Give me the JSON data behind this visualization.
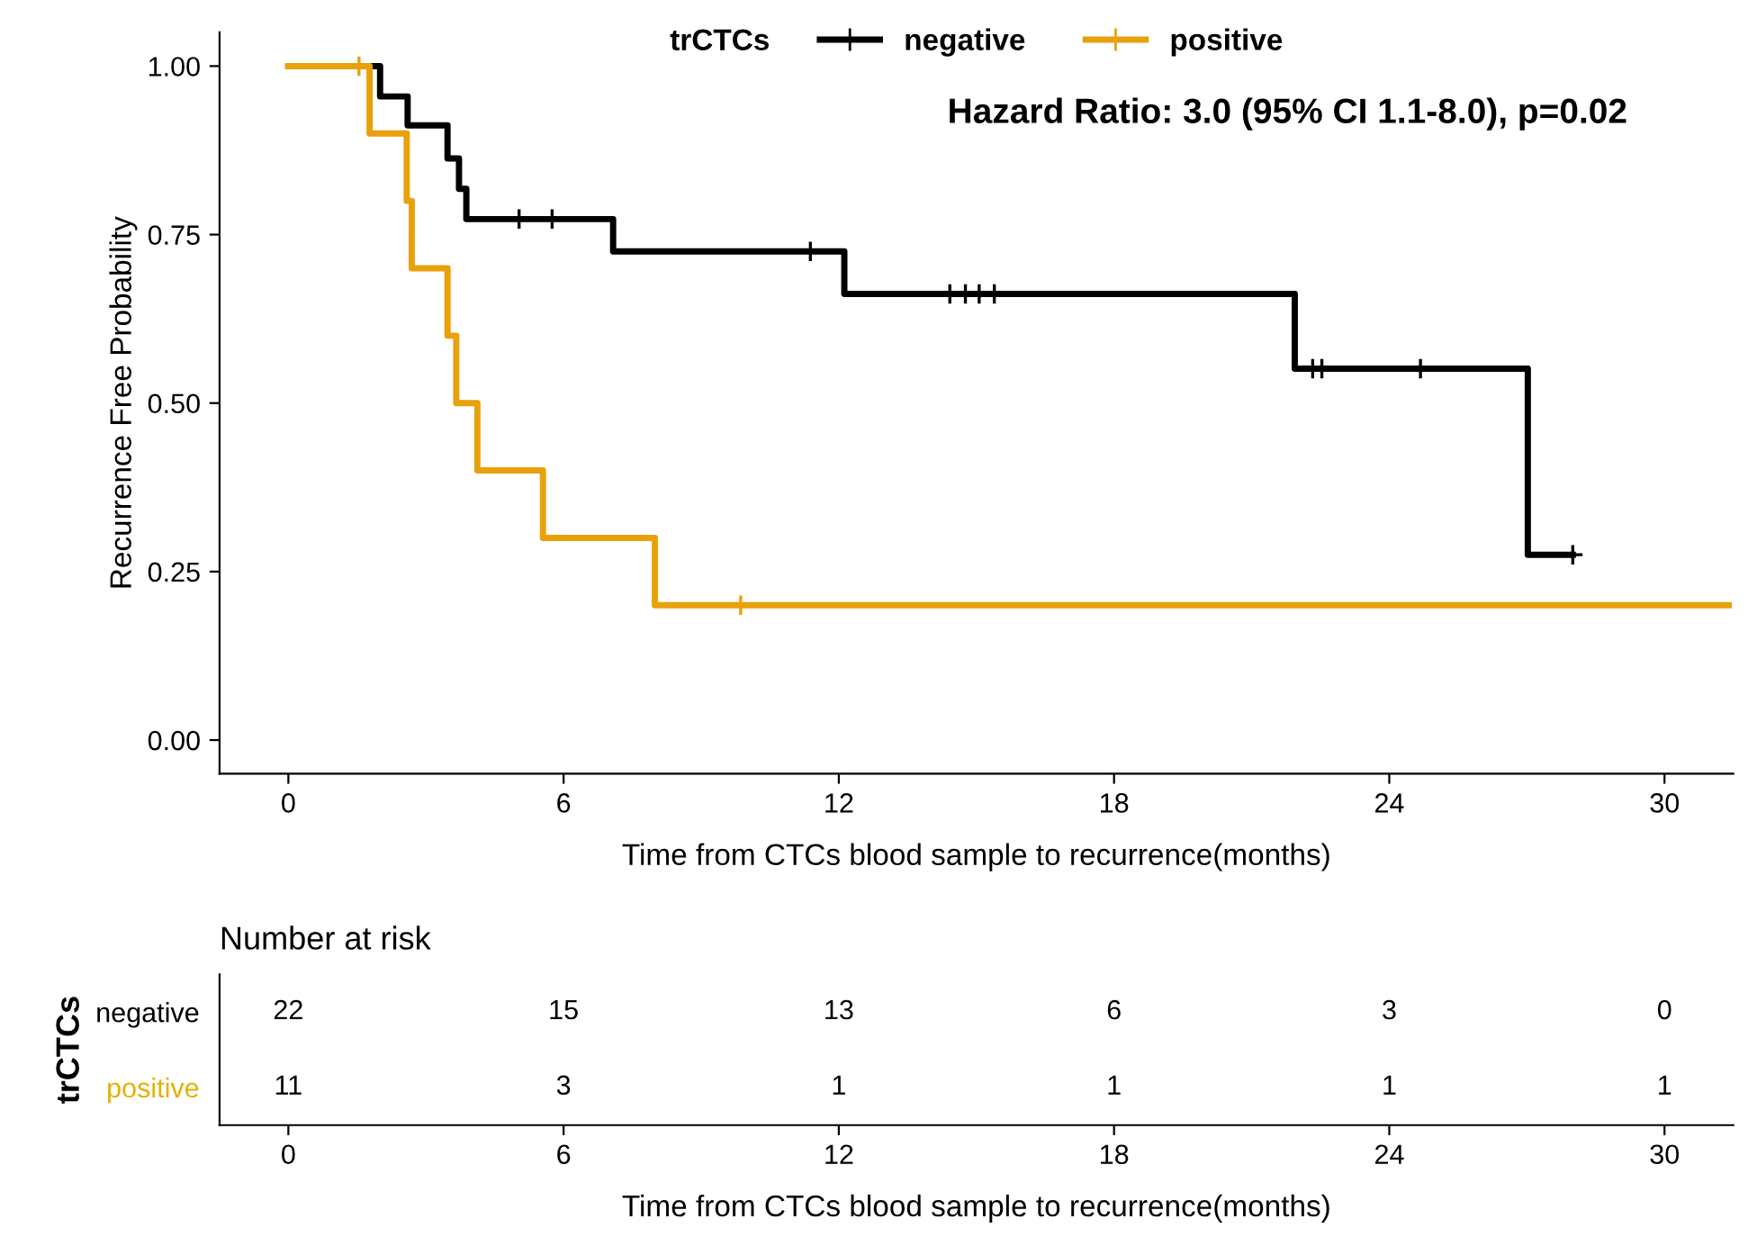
{
  "chart_data": [
    {
      "type": "step",
      "xlabel": "Time from CTCs blood sample to recurrence(months)",
      "ylabel": "Recurrence Free Probability",
      "legend_title": "trCTCs",
      "legend": "top",
      "annotations": [
        "Hazard Ratio: 3.0 (95% CI 1.1-8.0), p=0.02"
      ],
      "xlim": [
        -1.5,
        31.5
      ],
      "xticks": [
        0,
        6,
        12,
        18,
        24,
        30
      ],
      "ylim": [
        -0.05,
        1.05
      ],
      "yticks": [
        {
          "value": 0,
          "label": "0.00"
        },
        {
          "value": 0.25,
          "label": "0.25"
        },
        {
          "value": 0.5,
          "label": "0.50"
        },
        {
          "value": 0.75,
          "label": "0.75"
        },
        {
          "value": 1,
          "label": "1.00"
        }
      ],
      "grid": false,
      "series": [
        {
          "name": "negative",
          "color": "#000000",
          "type": "step",
          "x": [
            0,
            2.0,
            2.6,
            3.47,
            3.72,
            3.88,
            7.08,
            12.12,
            21.94,
            27.02,
            28.0
          ],
          "values": [
            1,
            0.955,
            0.912,
            0.863,
            0.818,
            0.773,
            0.725,
            0.662,
            0.551,
            0.275,
            0.275
          ]
        },
        {
          "color": "#000000",
          "type": "scatter",
          "marker": "cross",
          "x": [
            5.03,
            5.75,
            11.38,
            14.42,
            14.76,
            15.06,
            15.39,
            22.33,
            22.53,
            24.68,
            28.0
          ],
          "values": [
            0.773,
            0.773,
            0.725,
            0.662,
            0.662,
            0.662,
            0.662,
            0.551,
            0.551,
            0.551,
            0.275
          ]
        },
        {
          "name": "positive",
          "color": "#e8a10a",
          "type": "step",
          "x": [
            0,
            1.77,
            2.58,
            2.69,
            3.47,
            3.66,
            4.12,
            5.55,
            7.99,
            31.4
          ],
          "values": [
            1,
            0.9,
            0.8,
            0.7,
            0.6,
            0.5,
            0.4,
            0.3,
            0.2,
            0.2
          ]
        },
        {
          "color": "#e8a10a",
          "type": "scatter",
          "marker": "cross",
          "x": [
            1.54,
            9.86
          ],
          "values": [
            1,
            0.2
          ]
        }
      ]
    },
    {
      "type": "heatmap",
      "title": "Number at risk",
      "ylabel": "trCTCs",
      "xlabel": "Time from CTCs blood sample to recurrence(months)",
      "categories": [
        "0",
        "6",
        "12",
        "18",
        "24",
        "30"
      ],
      "y_categories": [
        "negative",
        "positive"
      ],
      "colors": [
        "#000000",
        "#e6b000"
      ],
      "cells": [
        [
          22,
          15,
          13,
          6,
          3,
          0
        ],
        [
          11,
          3,
          1,
          1,
          1,
          1
        ]
      ],
      "data_labels": true
    }
  ]
}
